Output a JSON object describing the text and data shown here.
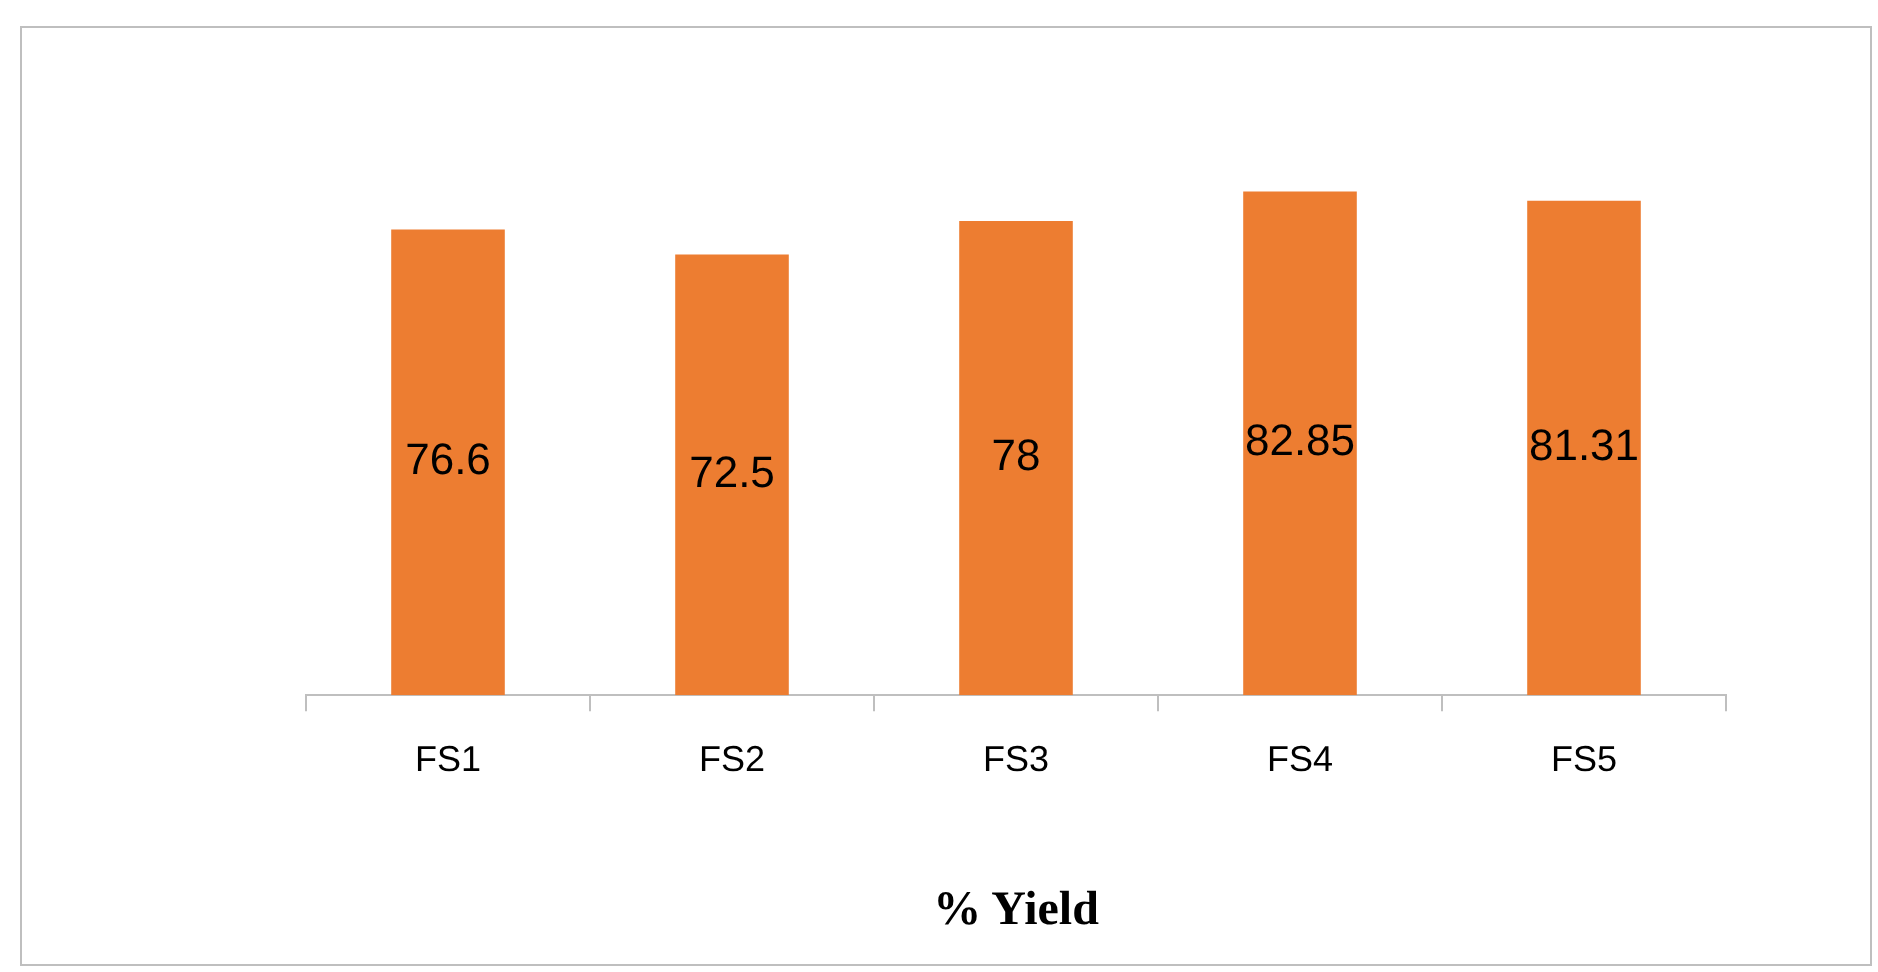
{
  "chart_data": {
    "type": "bar",
    "xlabel": "% Yield",
    "categories": [
      "FS1",
      "FS2",
      "FS3",
      "FS4",
      "FS5"
    ],
    "values": [
      76.6,
      72.5,
      78,
      82.85,
      81.31
    ],
    "color": "#ed7d31",
    "data_labels": true,
    "tick_labels": "x",
    "grid": false,
    "legend": false
  }
}
